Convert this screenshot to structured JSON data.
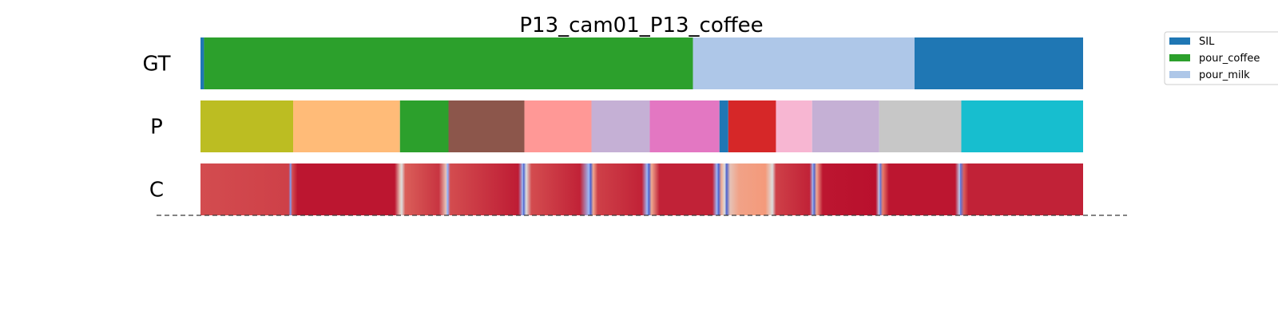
{
  "chart_data": {
    "type": "segmentation_timeline",
    "title": "P13_cam01_P13_coffee",
    "x_range": [
      0,
      1000
    ],
    "rows": [
      {
        "label": "GT",
        "segments": [
          {
            "start": 0,
            "end": 4,
            "color": "#1f77b4"
          },
          {
            "start": 4,
            "end": 558,
            "color": "#2ca02c"
          },
          {
            "start": 558,
            "end": 809,
            "color": "#aec7e8"
          },
          {
            "start": 809,
            "end": 1000,
            "color": "#1f77b4"
          }
        ]
      },
      {
        "label": "P",
        "segments": [
          {
            "start": 0,
            "end": 105,
            "color": "#bcbd22"
          },
          {
            "start": 105,
            "end": 226,
            "color": "#ffbb78"
          },
          {
            "start": 226,
            "end": 281,
            "color": "#2ca02c"
          },
          {
            "start": 281,
            "end": 367,
            "color": "#8c564b"
          },
          {
            "start": 367,
            "end": 443,
            "color": "#ff9896"
          },
          {
            "start": 443,
            "end": 509,
            "color": "#c5b0d5"
          },
          {
            "start": 509,
            "end": 588,
            "color": "#e377c2"
          },
          {
            "start": 588,
            "end": 598,
            "color": "#1f77b4"
          },
          {
            "start": 598,
            "end": 652,
            "color": "#d62728"
          },
          {
            "start": 652,
            "end": 693,
            "color": "#f7b6d2"
          },
          {
            "start": 693,
            "end": 769,
            "color": "#c5b0d5"
          },
          {
            "start": 769,
            "end": 862,
            "color": "#c7c7c7"
          },
          {
            "start": 862,
            "end": 1000,
            "color": "#17becf"
          }
        ]
      },
      {
        "label": "C",
        "colormap": "coolwarm",
        "confidence": [
          [
            0,
            0.88
          ],
          [
            100,
            0.9
          ],
          [
            102,
            0.2
          ],
          [
            104,
            0.88
          ],
          [
            110,
            0.97
          ],
          [
            220,
            0.97
          ],
          [
            226,
            0.6
          ],
          [
            228,
            0.5
          ],
          [
            232,
            0.85
          ],
          [
            270,
            0.92
          ],
          [
            278,
            0.6
          ],
          [
            280,
            0.25
          ],
          [
            283,
            0.88
          ],
          [
            360,
            0.96
          ],
          [
            365,
            0.3
          ],
          [
            366,
            0.05
          ],
          [
            369,
            0.5
          ],
          [
            375,
            0.88
          ],
          [
            430,
            0.95
          ],
          [
            440,
            0.3
          ],
          [
            442,
            0.05
          ],
          [
            445,
            0.7
          ],
          [
            450,
            0.9
          ],
          [
            500,
            0.95
          ],
          [
            506,
            0.3
          ],
          [
            508,
            0.05
          ],
          [
            511,
            0.7
          ],
          [
            520,
            0.95
          ],
          [
            580,
            0.95
          ],
          [
            585,
            0.3
          ],
          [
            587,
            0.05
          ],
          [
            590,
            0.7
          ],
          [
            594,
            0.5
          ],
          [
            596,
            0.05
          ],
          [
            600,
            0.6
          ],
          [
            610,
            0.72
          ],
          [
            640,
            0.75
          ],
          [
            648,
            0.5
          ],
          [
            652,
            0.9
          ],
          [
            690,
            0.95
          ],
          [
            694,
            0.3
          ],
          [
            695,
            0.05
          ],
          [
            698,
            0.7
          ],
          [
            705,
            0.97
          ],
          [
            765,
            0.98
          ],
          [
            769,
            0.4
          ],
          [
            770,
            0.1
          ],
          [
            773,
            0.8
          ],
          [
            780,
            0.97
          ],
          [
            855,
            0.97
          ],
          [
            860,
            0.4
          ],
          [
            861,
            0.1
          ],
          [
            865,
            0.85
          ],
          [
            870,
            0.95
          ],
          [
            1000,
            0.95
          ]
        ]
      }
    ],
    "legend": {
      "placement": "top-right",
      "entries": [
        {
          "label": "SIL",
          "color": "#1f77b4"
        },
        {
          "label": "pour_coffee",
          "color": "#2ca02c"
        },
        {
          "label": "pour_milk",
          "color": "#aec7e8"
        }
      ]
    }
  }
}
